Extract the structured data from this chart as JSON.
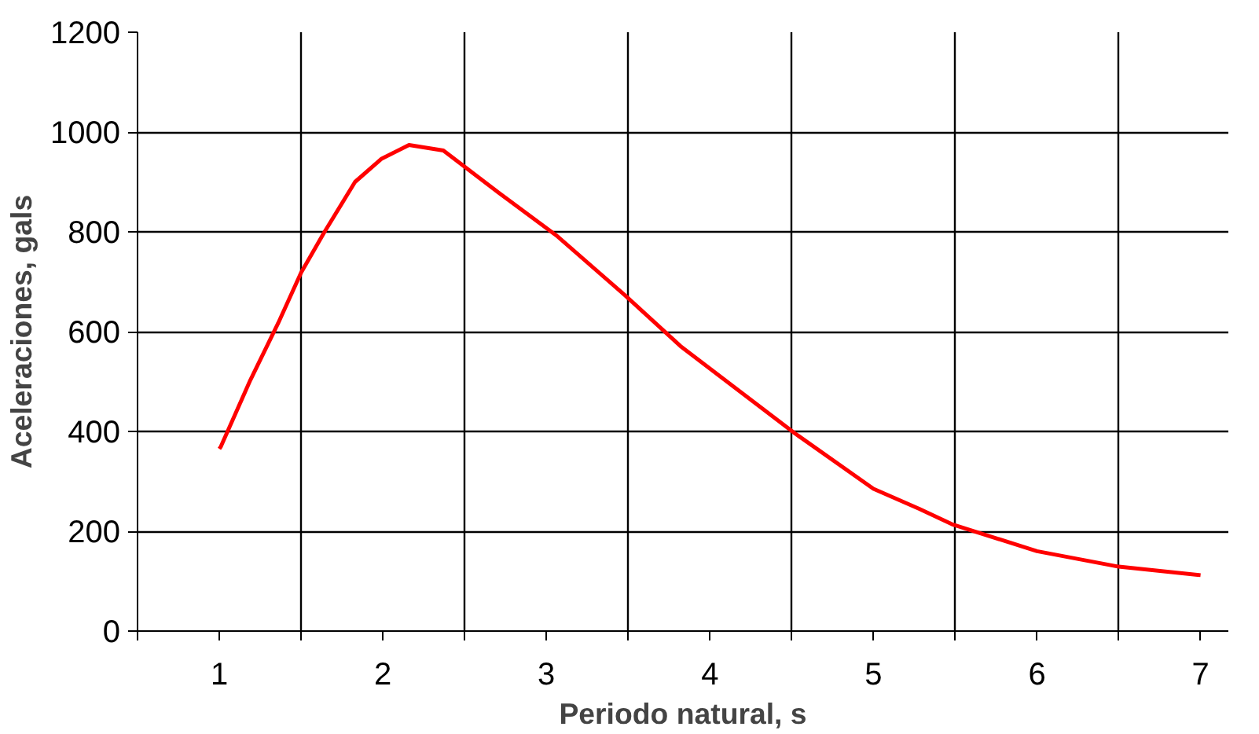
{
  "chart_data": {
    "type": "line",
    "xlabel": "Periodo natural, s",
    "ylabel": "Aceleraciones, gals",
    "x": [
      1.0,
      1.01,
      1.19,
      1.36,
      1.5,
      1.64,
      1.83,
      1.99,
      2.16,
      2.37,
      2.71,
      3.06,
      3.48,
      3.82,
      4.52,
      5.0,
      5.28,
      5.48,
      6.0,
      6.5,
      7.0
    ],
    "series": [
      {
        "color": "#ff0000",
        "values": [
          365,
          370,
          503,
          617,
          718,
          798,
          900,
          946,
          974,
          963,
          878,
          793,
          673,
          571,
          396,
          285,
          245,
          214,
          160,
          129,
          112
        ]
      }
    ],
    "xlim": [
      0.5,
      7.17
    ],
    "xticks": [
      1,
      2,
      3,
      4,
      5,
      6,
      7,
      {
        "value": 0.5,
        "label": null
      },
      {
        "value": 1.5,
        "label": null
      },
      {
        "value": 2.5,
        "label": null
      },
      {
        "value": 3.5,
        "label": null
      },
      {
        "value": 4.5,
        "label": null
      },
      {
        "value": 5.5,
        "label": null
      },
      {
        "value": 6.5,
        "label": null
      }
    ],
    "ylim": [
      0,
      1200
    ],
    "yticks": [
      0,
      200,
      400,
      600,
      800,
      1000,
      1200
    ],
    "grid": true,
    "marker": "none",
    "line_style": "solid"
  }
}
